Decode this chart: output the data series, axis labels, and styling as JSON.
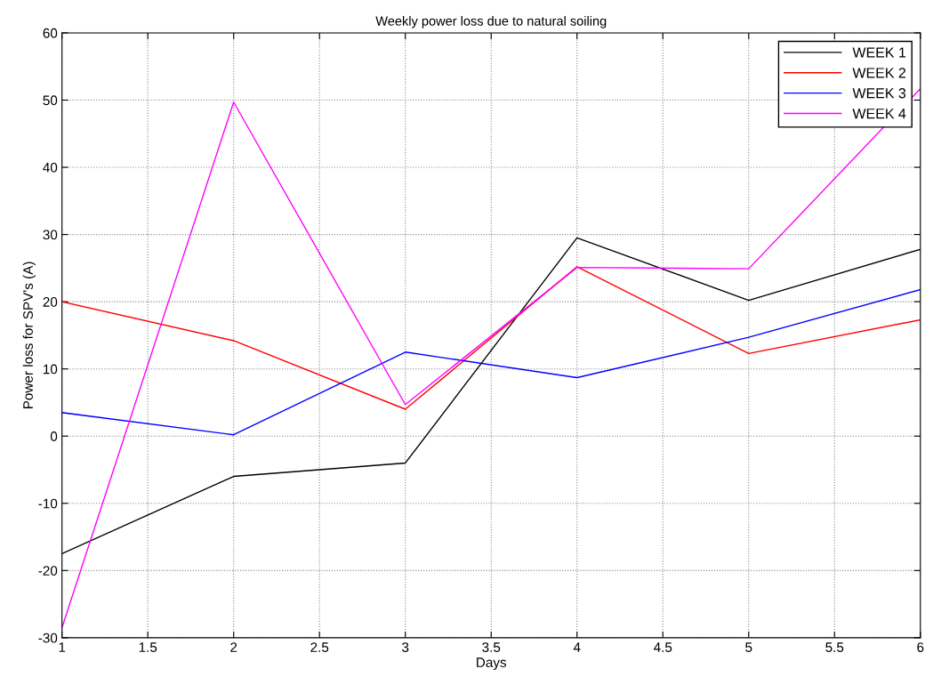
{
  "chart_data": {
    "type": "line",
    "title": "Weekly power loss due to natural soiling",
    "xlabel": "Days",
    "ylabel": "Power loss for SPV's (A)",
    "x": [
      1,
      2,
      3,
      4,
      5,
      6
    ],
    "series": [
      {
        "name": "WEEK 1",
        "color": "#000000",
        "values": [
          -17.5,
          -6,
          -4,
          29.5,
          20.2,
          27.8
        ]
      },
      {
        "name": "WEEK 2",
        "color": "#ff0000",
        "values": [
          20,
          14.2,
          4,
          25.2,
          12.3,
          17.3
        ]
      },
      {
        "name": "WEEK 3",
        "color": "#0000ff",
        "values": [
          3.5,
          0.2,
          12.5,
          8.7,
          14.7,
          21.8
        ]
      },
      {
        "name": "WEEK 4",
        "color": "#ff00ff",
        "values": [
          -28.5,
          49.7,
          4.7,
          25.1,
          24.9,
          51.7
        ]
      }
    ],
    "xlim": [
      1,
      6
    ],
    "xticks": [
      1,
      1.5,
      2,
      2.5,
      3,
      3.5,
      4,
      4.5,
      5,
      5.5,
      6
    ],
    "ylim": [
      -30,
      60
    ],
    "yticks": [
      -30,
      -20,
      -10,
      0,
      10,
      20,
      30,
      40,
      50,
      60
    ],
    "grid": true,
    "legend": "top right",
    "marker": "none",
    "line_style": "solid"
  }
}
